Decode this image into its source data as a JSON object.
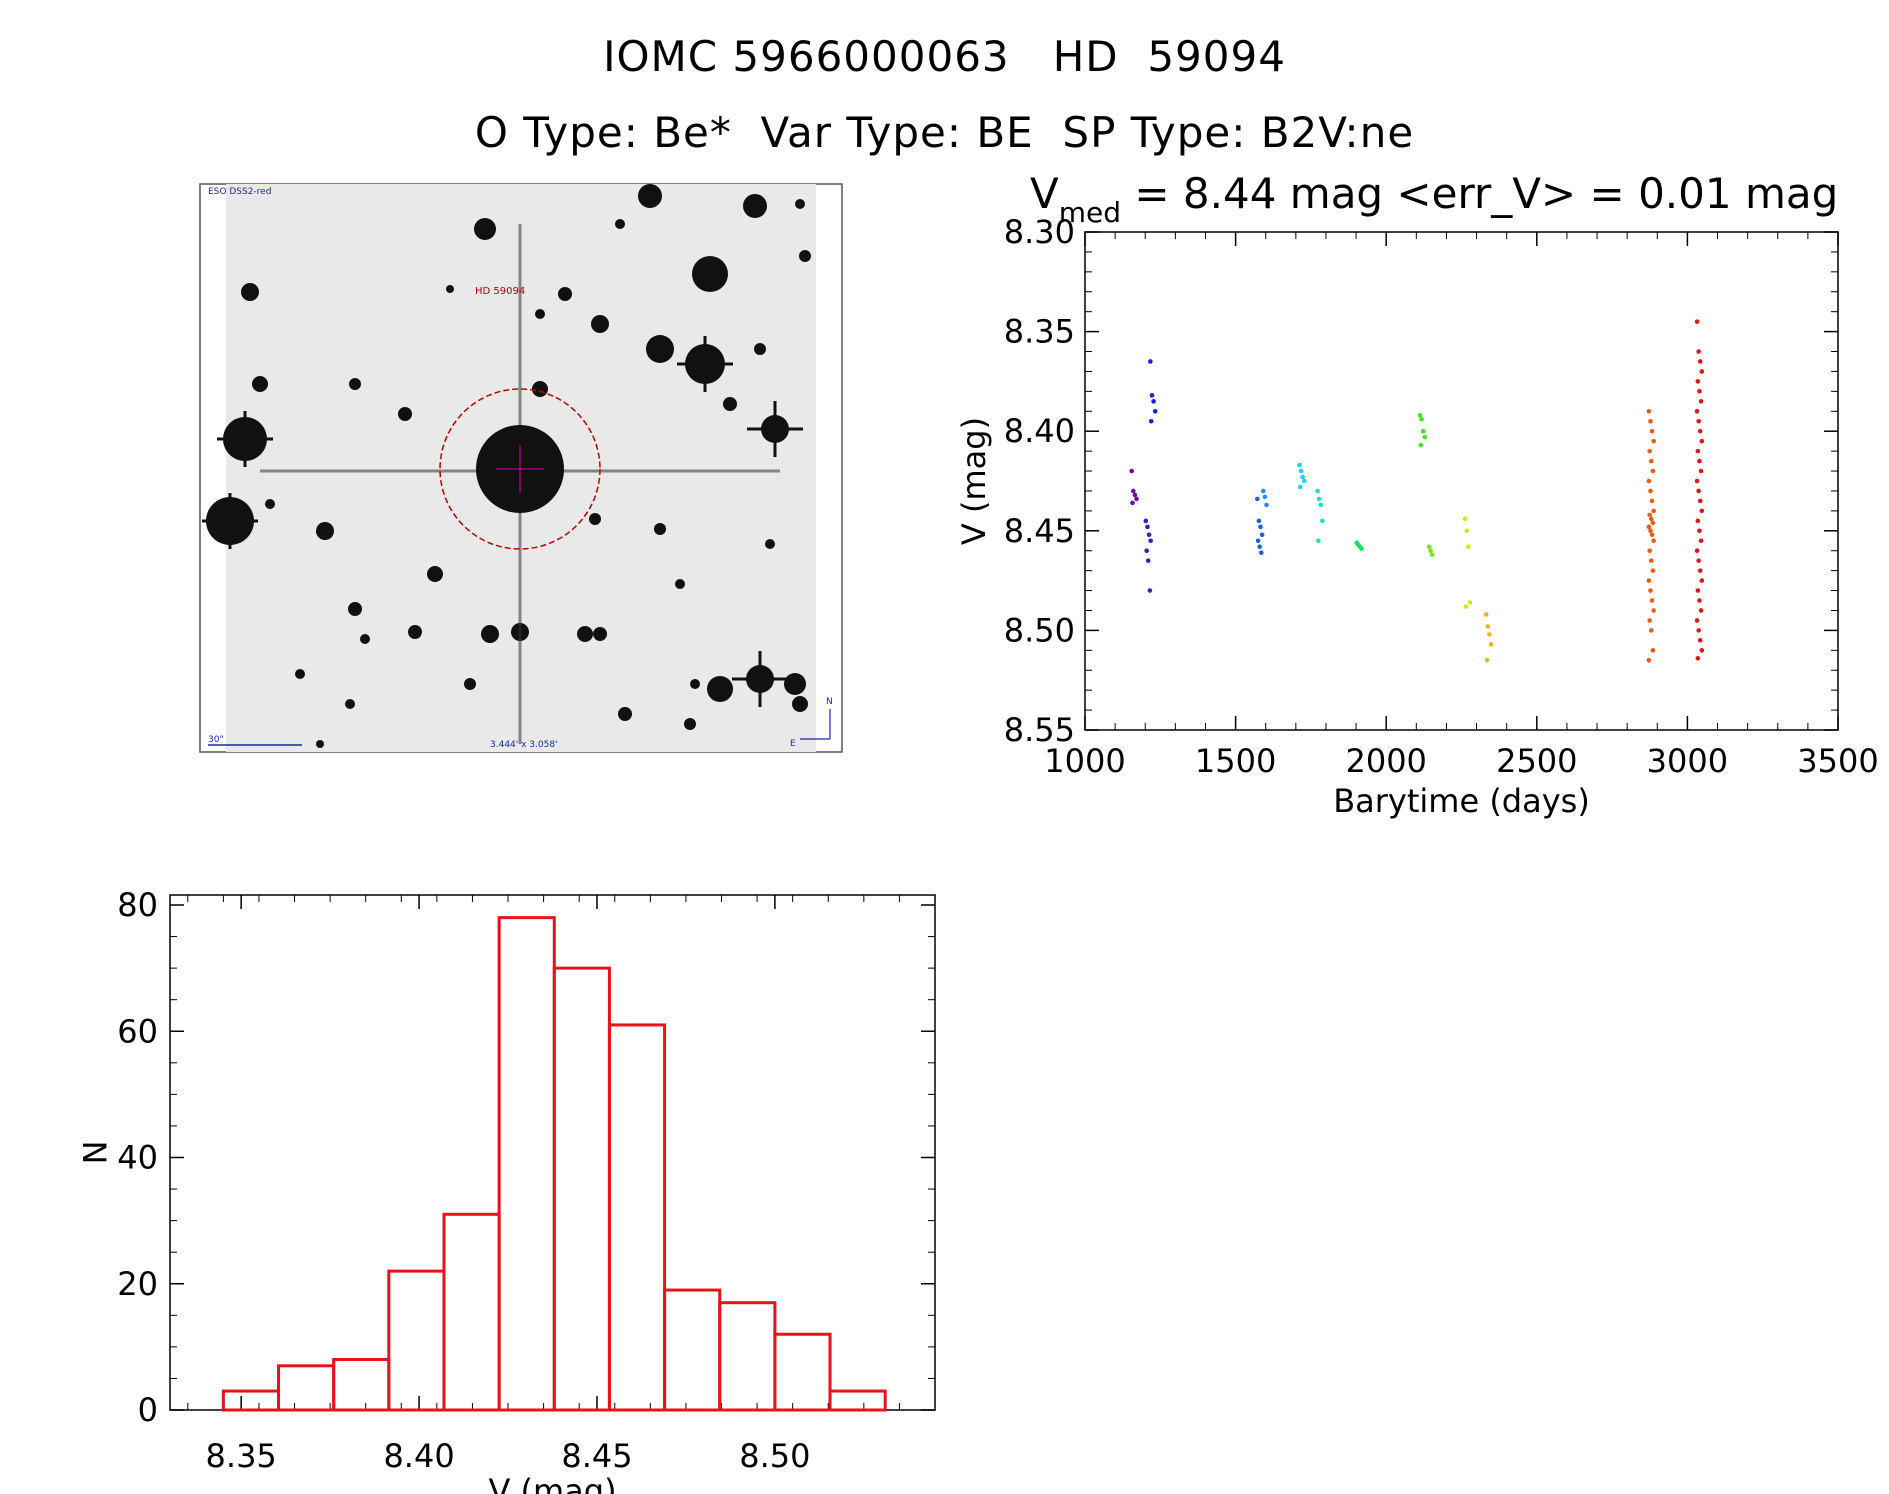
{
  "header": {
    "title_line1": "IOMC 5966000063   HD  59094",
    "title_line2": "O Type: Be*  Var Type: BE  SP Type: B2V:ne"
  },
  "sky_image": {
    "survey_label": "ESO DSS2-red",
    "target_label": "HD 59094",
    "scale_label": "30\"",
    "fov_label": "3.444' x 3.058'",
    "north_label": "N",
    "east_label": "E"
  },
  "lightcurve_title": {
    "v_symbol": "V",
    "subscript": "med",
    "rest": " = 8.44 mag <err_V> = 0.01 mag"
  },
  "chart_data": [
    {
      "type": "scatter",
      "xlabel": "Barytime (days)",
      "ylabel": "V (mag)",
      "xlim": [
        1000,
        3500
      ],
      "ylim": [
        8.55,
        8.3
      ],
      "y_inverted": true,
      "xticks": [
        "1000",
        "1500",
        "2000",
        "2500",
        "3000",
        "3500"
      ],
      "yticks": [
        "8.30",
        "8.35",
        "8.40",
        "8.45",
        "8.50",
        "8.55"
      ],
      "groups": [
        {
          "color": "#6a0dad",
          "x": 1163,
          "y": [
            8.42,
            8.43,
            8.432,
            8.434,
            8.436
          ]
        },
        {
          "color": "#3b1fb8",
          "x": 1210,
          "y": [
            8.445,
            8.448,
            8.452,
            8.455,
            8.46,
            8.465,
            8.48
          ]
        },
        {
          "color": "#1a1ae6",
          "x": 1225,
          "y": [
            8.365,
            8.382,
            8.385,
            8.39,
            8.395
          ]
        },
        {
          "color": "#1f5fe0",
          "x": 1580,
          "y": [
            8.434,
            8.445,
            8.448,
            8.452,
            8.455,
            8.458,
            8.461
          ]
        },
        {
          "color": "#2a8cf0",
          "x": 1600,
          "y": [
            8.43,
            8.433,
            8.437
          ]
        },
        {
          "color": "#19d6f0",
          "x": 1720,
          "y": [
            8.417,
            8.42,
            8.423,
            8.425,
            8.428
          ]
        },
        {
          "color": "#14e3c0",
          "x": 1780,
          "y": [
            8.43,
            8.434,
            8.437,
            8.445,
            8.455
          ]
        },
        {
          "color": "#14e060",
          "x": 1910,
          "y": [
            8.456,
            8.457,
            8.458,
            8.459
          ]
        },
        {
          "color": "#3fe61a",
          "x": 2120,
          "y": [
            8.392,
            8.394,
            8.4,
            8.403,
            8.407
          ]
        },
        {
          "color": "#7ae619",
          "x": 2150,
          "y": [
            8.458,
            8.46,
            8.462
          ]
        },
        {
          "color": "#d6e61a",
          "x": 2270,
          "y": [
            8.444,
            8.45,
            8.458,
            8.486,
            8.488
          ]
        },
        {
          "color": "#f0b414",
          "x": 2340,
          "y": [
            8.492,
            8.498,
            8.502,
            8.507,
            8.515
          ]
        },
        {
          "color": "#f05a14",
          "x": 2880,
          "y": [
            8.39,
            8.395,
            8.4,
            8.405,
            8.41,
            8.415,
            8.42,
            8.425,
            8.43,
            8.435,
            8.44,
            8.442,
            8.444,
            8.446,
            8.448,
            8.45,
            8.452,
            8.455,
            8.46,
            8.465,
            8.47,
            8.475,
            8.48,
            8.485,
            8.49,
            8.495,
            8.5,
            8.51,
            8.515
          ]
        },
        {
          "color": "#e6141a",
          "x": 3040,
          "y": [
            8.345,
            8.36,
            8.365,
            8.37,
            8.375,
            8.38,
            8.385,
            8.39,
            8.395,
            8.4,
            8.405,
            8.41,
            8.415,
            8.42,
            8.425,
            8.43,
            8.435,
            8.44,
            8.445,
            8.45,
            8.455,
            8.46,
            8.465,
            8.47,
            8.475,
            8.48,
            8.485,
            8.49,
            8.495,
            8.5,
            8.505,
            8.51,
            8.514
          ]
        }
      ]
    },
    {
      "type": "bar",
      "style": "histogram",
      "xlabel": "V (mag)",
      "ylabel": "N",
      "xlim": [
        8.33,
        8.545
      ],
      "ylim": [
        0,
        80
      ],
      "xticks": [
        "8.35",
        "8.40",
        "8.45",
        "8.50"
      ],
      "yticks": [
        "0",
        "20",
        "40",
        "60",
        "80"
      ],
      "bin_width": 0.0155,
      "bin_starts": [
        8.345,
        8.3605,
        8.376,
        8.3915,
        8.407,
        8.4225,
        8.438,
        8.4535,
        8.469,
        8.4845,
        8.5,
        8.5155
      ],
      "values": [
        3,
        7,
        8,
        22,
        31,
        78,
        70,
        61,
        19,
        17,
        12,
        3
      ],
      "bar_color": "#e6141a"
    }
  ]
}
